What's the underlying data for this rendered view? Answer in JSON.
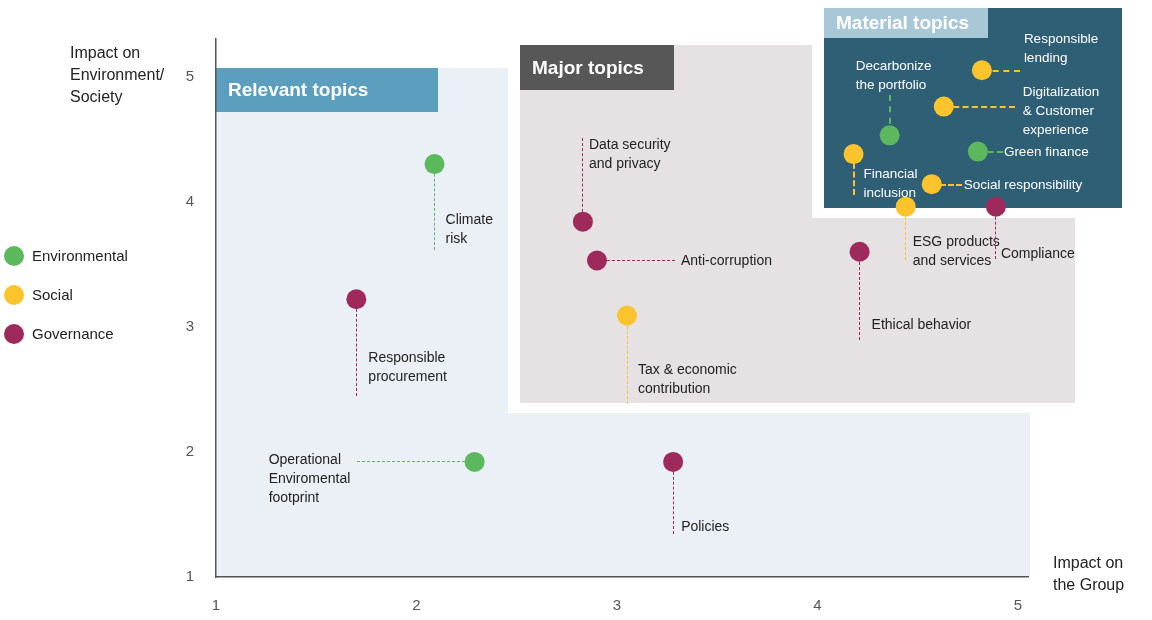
{
  "chart_data": {
    "type": "scatter",
    "xlabel": "Impact on the Group",
    "ylabel": "Impact on Environment/ Society",
    "xlim": [
      1,
      5.05
    ],
    "ylim": [
      1,
      5.3
    ],
    "xticks": [
      1,
      2,
      3,
      4,
      5
    ],
    "yticks": [
      1,
      2,
      3,
      4,
      5
    ],
    "grid": false,
    "legend": "left",
    "marker": "circle",
    "series": [
      {
        "name": "Environmental",
        "color": "#5cb85c",
        "x": [
          2.09,
          2.29,
          4.36,
          4.8
        ],
        "values": [
          4.3,
          1.92,
          4.53,
          4.4
        ]
      },
      {
        "name": "Social",
        "color": "#fcc42c",
        "x": [
          3.05,
          4.82,
          4.63,
          4.18,
          4.57,
          4.44
        ],
        "values": [
          3.09,
          5.05,
          4.76,
          4.38,
          4.14,
          3.96
        ]
      },
      {
        "name": "Governance",
        "color": "#9e2a5c",
        "x": [
          1.7,
          3.28,
          2.83,
          2.9,
          4.21,
          4.89
        ],
        "values": [
          3.22,
          1.92,
          3.84,
          3.53,
          3.6,
          3.96
        ]
      }
    ],
    "annotations": [
      "Relevant topics",
      "Major topics",
      "Material topics",
      {
        "text": "Climate\nrisk",
        "x": 2.09,
        "y": 4.3
      },
      {
        "text": "Responsible\nprocurement",
        "x": 1.7,
        "y": 3.22
      },
      {
        "text": "Operational\nEnviromental\nfootprint",
        "x": 2.29,
        "y": 1.92
      },
      {
        "text": "Policies",
        "x": 3.28,
        "y": 1.92
      },
      {
        "text": "Data security\nand privacy",
        "x": 2.83,
        "y": 3.84
      },
      {
        "text": "Anti-corruption",
        "x": 2.9,
        "y": 3.53
      },
      {
        "text": "Tax & economic\ncontribution",
        "x": 3.05,
        "y": 3.09
      },
      {
        "text": "Ethical behavior",
        "x": 4.21,
        "y": 3.6
      },
      {
        "text": "Responsible\nlending",
        "x": 4.82,
        "y": 5.05
      },
      {
        "text": "Decarbonize\nthe portfolio",
        "x": 4.36,
        "y": 4.53
      },
      {
        "text": "Digitalization\n& Customer\nexperience",
        "x": 4.63,
        "y": 4.76
      },
      {
        "text": "Green finance",
        "x": 4.8,
        "y": 4.4
      },
      {
        "text": "Financial\ninclusion",
        "x": 4.18,
        "y": 4.38
      },
      {
        "text": "Social responsibility",
        "x": 4.57,
        "y": 4.14
      },
      {
        "text": "ESG products\nand services",
        "x": 4.44,
        "y": 3.96
      },
      {
        "text": "Compliance",
        "x": 4.89,
        "y": 3.96
      }
    ]
  }
}
